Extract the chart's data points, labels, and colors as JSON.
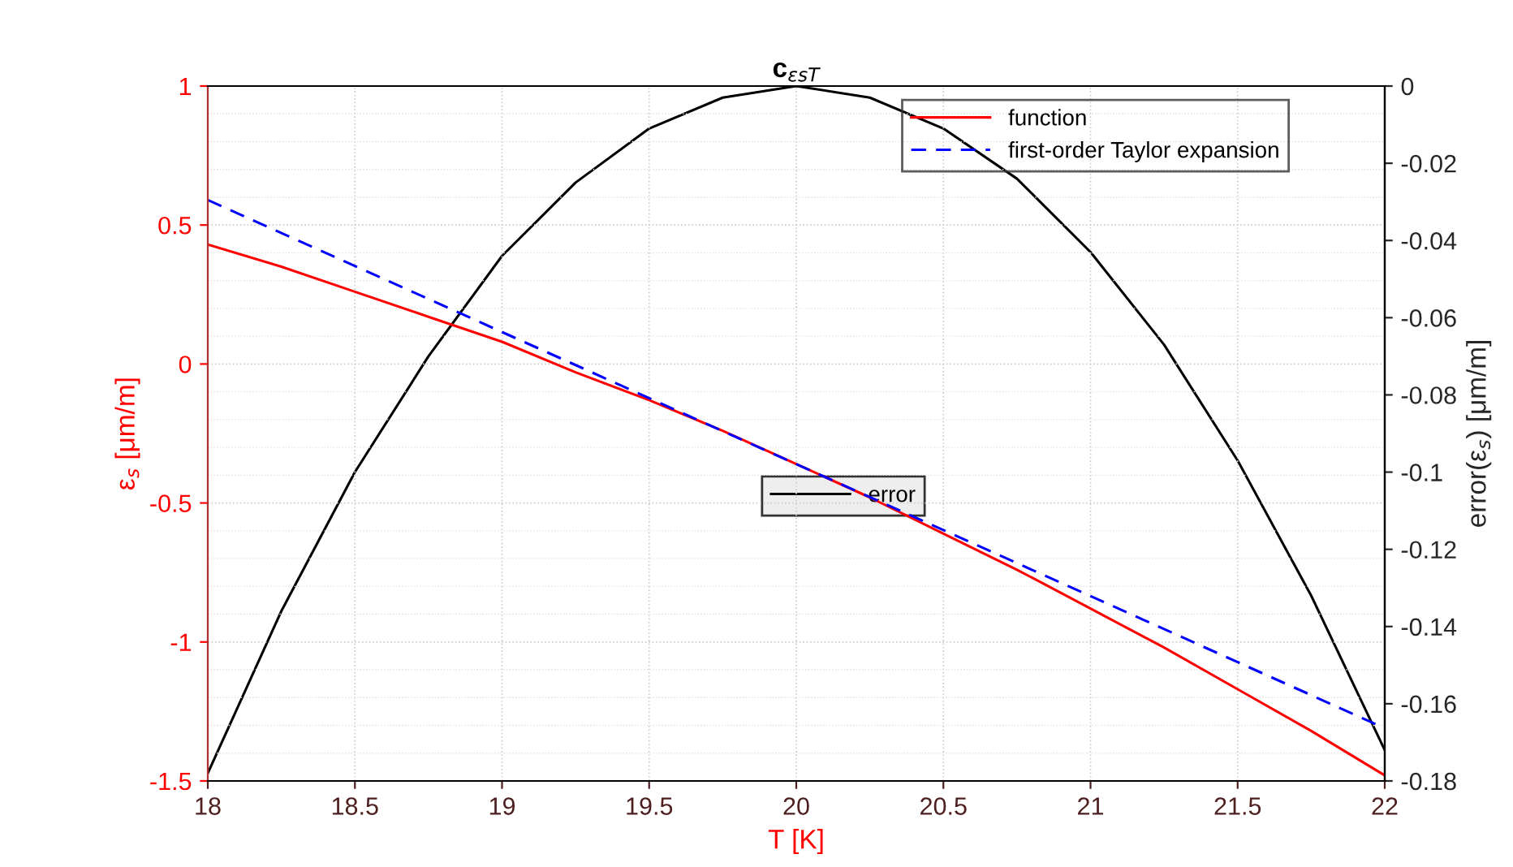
{
  "chart_data": {
    "type": "line",
    "title": "c$_{εsT}$",
    "xlabel": "T [K]",
    "ylabel": "ε$_{s}$ [μm/m]",
    "y2label": "error(ε$_{s}$) [μm/m]",
    "x": [
      18,
      18.25,
      18.5,
      18.75,
      19,
      19.25,
      19.5,
      19.75,
      20,
      20.25,
      20.5,
      20.75,
      21,
      21.25,
      21.5,
      21.75,
      22
    ],
    "series": [
      {
        "name": "function",
        "color": "#ff0000",
        "line_style": "solid",
        "values": [
          0.43,
          0.35,
          0.26,
          0.17,
          0.08,
          -0.03,
          -0.13,
          -0.24,
          -0.36,
          -0.48,
          -0.61,
          -0.74,
          -0.88,
          -1.02,
          -1.17,
          -1.32,
          -1.48
        ]
      },
      {
        "name": "first-order Taylor expansion",
        "color": "#0000ff",
        "line_style": "dashed",
        "x": [
          18,
          22
        ],
        "values": [
          0.59,
          -1.31
        ]
      },
      {
        "name": "error",
        "color": "#000000",
        "line_style": "solid",
        "axis": "y2",
        "values": [
          -0.178,
          -0.136,
          -0.1,
          -0.07,
          -0.044,
          -0.025,
          -0.011,
          -0.003,
          0,
          -0.003,
          -0.011,
          -0.024,
          -0.043,
          -0.067,
          -0.097,
          -0.132,
          -0.172
        ]
      }
    ],
    "xlim": [
      18,
      22
    ],
    "xticks": [
      18,
      18.5,
      19,
      19.5,
      20,
      20.5,
      21,
      21.5,
      22
    ],
    "ylim": [
      -1.5,
      1
    ],
    "yticks": [
      -1.5,
      -1,
      -0.5,
      0,
      0.5,
      1
    ],
    "y2lim": [
      -0.18,
      0
    ],
    "y2ticks": [
      -0.18,
      -0.16,
      -0.14,
      -0.12,
      -0.1,
      -0.08,
      -0.06,
      -0.04,
      -0.02,
      0
    ],
    "grid": true,
    "legend": "top right",
    "marker": "none"
  }
}
